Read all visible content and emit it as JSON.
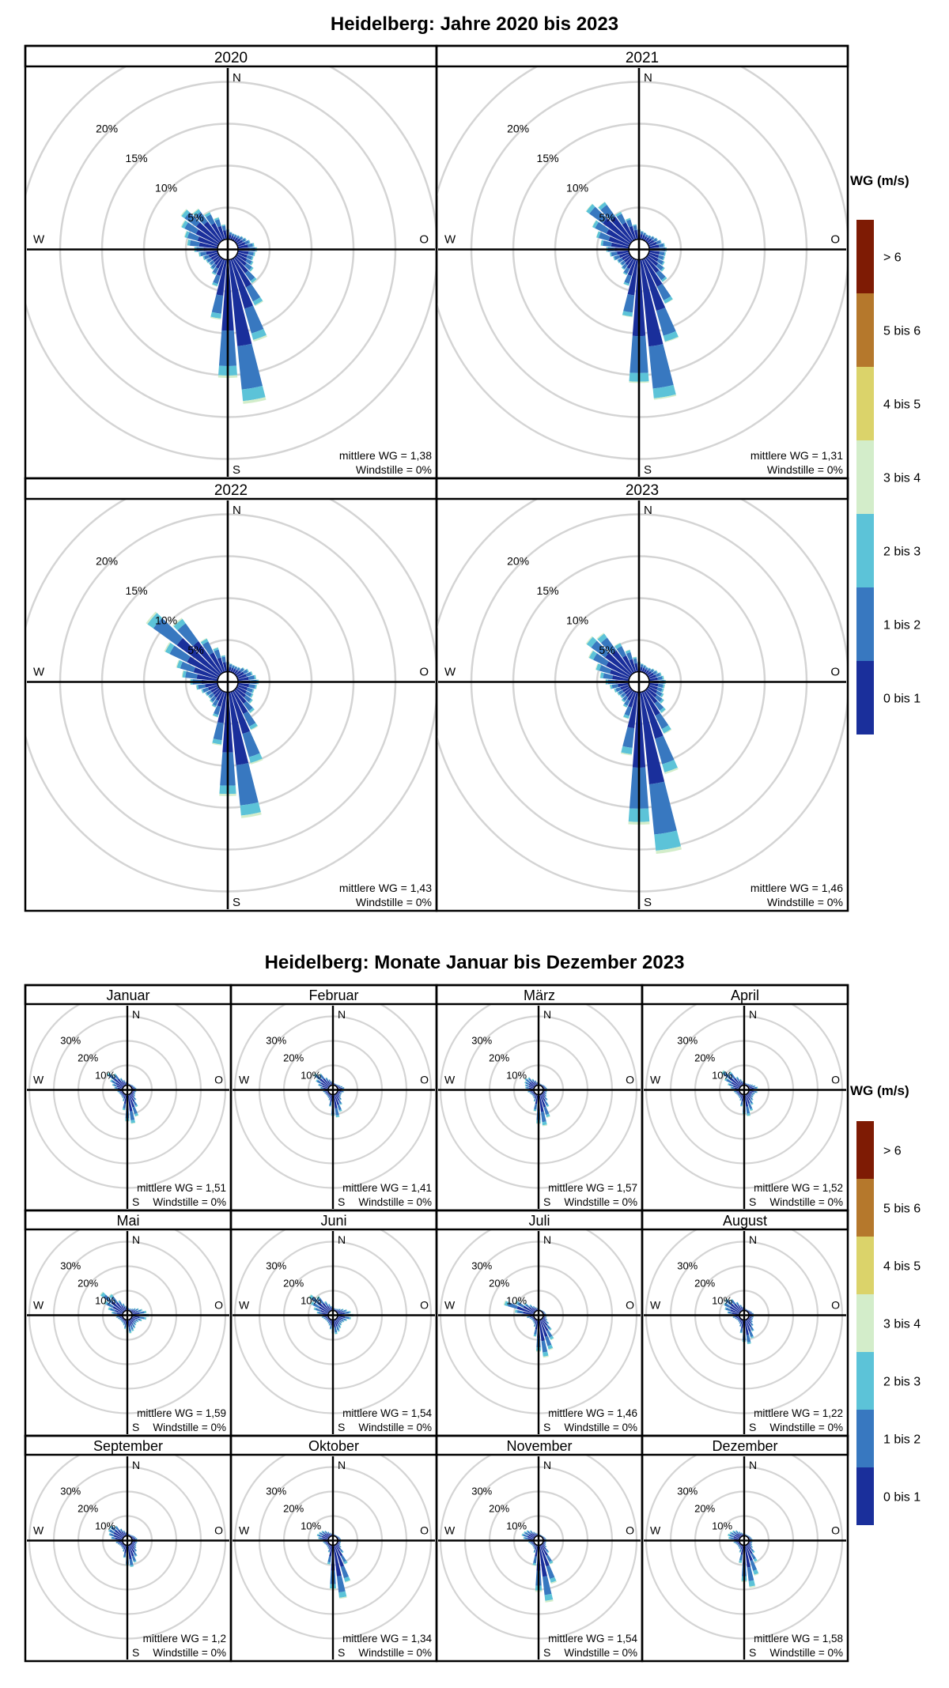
{
  "colors": {
    "bins": [
      "#1a2f9b",
      "#3878c0",
      "#5cc3d8",
      "#d3edca",
      "#dbd36a",
      "#b5782c",
      "#7e1b04"
    ],
    "ring": "#d4d4d4",
    "axis": "#000000"
  },
  "chart_data": [
    {
      "type": "windrose",
      "title": "Heidelberg: Jahre 2020 bis 2023",
      "facet_layout": "2x2",
      "radial_ticks": [
        5,
        10,
        15,
        20
      ],
      "radial_tick_labels": [
        "5%",
        "10%",
        "15%",
        "20%"
      ],
      "radial_max": 25,
      "direction_labels": {
        "n": "N",
        "e": "O",
        "s": "S",
        "w": "W"
      },
      "legend": {
        "title": "WG (m/s)",
        "entries": [
          "0 bis 1",
          "1 bis 2",
          "2 bis 3",
          "3 bis 4",
          "4 bis 5",
          "5 bis 6",
          "> 6"
        ]
      },
      "directions_deg": [
        0,
        10,
        20,
        30,
        40,
        50,
        60,
        70,
        80,
        90,
        100,
        110,
        120,
        130,
        140,
        150,
        160,
        170,
        180,
        190,
        200,
        210,
        220,
        230,
        240,
        250,
        260,
        270,
        280,
        290,
        300,
        310,
        320,
        330,
        340,
        350
      ],
      "panels": [
        {
          "label": "2020",
          "stat_mean": "mittlere WG = 1,38",
          "stat_calm": "Windstille = 0%",
          "totals": [
            1.2,
            0.9,
            0.8,
            0.8,
            0.9,
            1.1,
            1.3,
            1.6,
            2.0,
            2.3,
            2.1,
            2.0,
            2.2,
            2.6,
            3.8,
            6.3,
            10.2,
            17.3,
            14.1,
            7.2,
            3.4,
            2.2,
            1.8,
            1.6,
            1.7,
            1.9,
            2.3,
            2.8,
            3.7,
            4.2,
            5.0,
            5.7,
            4.8,
            3.8,
            2.8,
            1.8
          ],
          "shares": [
            0.6,
            0.3,
            0.08,
            0.02,
            0,
            0,
            0
          ]
        },
        {
          "label": "2021",
          "stat_mean": "mittlere WG = 1,31",
          "stat_calm": "Windstille = 0%",
          "totals": [
            1.2,
            1.0,
            0.9,
            0.8,
            0.9,
            1.1,
            1.3,
            1.6,
            1.9,
            2.1,
            2.0,
            2.0,
            2.2,
            2.6,
            3.6,
            6.0,
            10.3,
            16.8,
            14.7,
            6.9,
            3.3,
            2.2,
            1.8,
            1.6,
            1.7,
            2.0,
            2.3,
            2.7,
            3.4,
            4.1,
            5.0,
            6.6,
            5.8,
            3.8,
            2.7,
            1.8
          ],
          "shares": [
            0.62,
            0.3,
            0.07,
            0.01,
            0,
            0,
            0
          ]
        },
        {
          "label": "2022",
          "stat_mean": "mittlere WG = 1,43",
          "stat_calm": "Windstille = 0%",
          "totals": [
            1.2,
            1.0,
            0.9,
            0.9,
            1.0,
            1.3,
            1.6,
            1.9,
            2.2,
            2.5,
            2.3,
            2.1,
            2.2,
            2.5,
            3.4,
            5.2,
            9.0,
            15.1,
            12.4,
            6.4,
            3.2,
            2.2,
            1.9,
            1.7,
            1.8,
            2.1,
            2.6,
            3.3,
            4.3,
            5.2,
            7.2,
            10.8,
            8.2,
            4.6,
            3.1,
            2.0
          ],
          "shares": [
            0.58,
            0.32,
            0.08,
            0.02,
            0,
            0,
            0
          ]
        },
        {
          "label": "2023",
          "stat_mean": "mittlere WG = 1,46",
          "stat_calm": "Windstille = 0%",
          "totals": [
            1.2,
            1.0,
            0.9,
            0.8,
            0.9,
            1.1,
            1.3,
            1.6,
            1.8,
            2.0,
            1.9,
            1.9,
            2.1,
            2.5,
            3.4,
            5.7,
            10.2,
            19.4,
            15.8,
            7.6,
            3.4,
            2.2,
            1.8,
            1.6,
            1.7,
            1.9,
            2.3,
            2.8,
            3.5,
            4.2,
            5.5,
            6.6,
            6.0,
            4.0,
            2.8,
            1.8
          ],
          "shares": [
            0.57,
            0.31,
            0.1,
            0.02,
            0,
            0,
            0
          ]
        }
      ]
    },
    {
      "type": "windrose",
      "title": "Heidelberg: Monate Januar bis Dezember 2023",
      "facet_layout": "4x3",
      "radial_ticks": [
        10,
        20,
        30
      ],
      "radial_tick_labels": [
        "10%",
        "20%",
        "30%"
      ],
      "radial_max": 40,
      "direction_labels": {
        "n": "N",
        "e": "O",
        "s": "S",
        "w": "W"
      },
      "legend": {
        "title": "WG (m/s)",
        "entries": [
          "0 bis 1",
          "1 bis 2",
          "2 bis 3",
          "3 bis 4",
          "4 bis 5",
          "5 bis 6",
          "> 6"
        ]
      },
      "directions_deg": [
        0,
        10,
        20,
        30,
        40,
        50,
        60,
        70,
        80,
        90,
        100,
        110,
        120,
        130,
        140,
        150,
        160,
        170,
        180,
        190,
        200,
        210,
        220,
        230,
        240,
        250,
        260,
        270,
        280,
        290,
        300,
        310,
        320,
        330,
        340,
        350
      ],
      "panels": [
        {
          "label": "Januar",
          "stat_mean": "mittlere WG = 1,51",
          "stat_calm": "Windstille = 0%",
          "totals": [
            1.0,
            0.8,
            0.7,
            0.7,
            0.8,
            1.0,
            1.2,
            1.5,
            1.8,
            2.0,
            1.8,
            1.6,
            1.8,
            2.2,
            3.5,
            6.0,
            9.5,
            12.0,
            11.0,
            6.5,
            3.0,
            2.0,
            1.7,
            1.5,
            1.6,
            1.8,
            2.2,
            2.7,
            3.5,
            4.6,
            6.0,
            8.5,
            6.5,
            3.6,
            2.4,
            1.5
          ],
          "shares": [
            0.58,
            0.3,
            0.1,
            0.02,
            0,
            0,
            0
          ]
        },
        {
          "label": "Februar",
          "stat_mean": "mittlere WG = 1,41",
          "stat_calm": "Windstille = 0%",
          "totals": [
            1.2,
            0.9,
            0.8,
            0.8,
            0.9,
            1.2,
            1.6,
            2.2,
            2.8,
            3.2,
            2.6,
            2.0,
            2.0,
            2.3,
            3.3,
            5.0,
            7.5,
            9.5,
            8.8,
            5.0,
            2.6,
            1.9,
            1.6,
            1.5,
            1.6,
            1.8,
            2.2,
            2.7,
            3.4,
            4.5,
            6.0,
            8.0,
            6.5,
            3.8,
            2.6,
            1.7
          ],
          "shares": [
            0.6,
            0.3,
            0.08,
            0.02,
            0,
            0,
            0
          ]
        },
        {
          "label": "März",
          "stat_mean": "mittlere WG = 1,57",
          "stat_calm": "Windstille = 0%",
          "totals": [
            1.0,
            0.8,
            0.7,
            0.7,
            0.8,
            1.0,
            1.2,
            1.4,
            1.6,
            1.8,
            1.6,
            1.6,
            1.8,
            2.3,
            3.6,
            6.0,
            10.0,
            13.0,
            12.0,
            7.0,
            3.2,
            2.1,
            1.7,
            1.5,
            1.7,
            2.0,
            2.6,
            3.2,
            3.6,
            4.0,
            4.6,
            5.2,
            4.6,
            3.2,
            2.2,
            1.4
          ],
          "shares": [
            0.55,
            0.32,
            0.1,
            0.03,
            0,
            0,
            0
          ]
        },
        {
          "label": "April",
          "stat_mean": "mittlere WG = 1,52",
          "stat_calm": "Windstille = 0%",
          "totals": [
            1.2,
            1.0,
            0.9,
            1.0,
            1.2,
            1.6,
            2.2,
            3.0,
            3.8,
            4.2,
            3.6,
            2.8,
            2.6,
            2.8,
            3.6,
            5.0,
            7.2,
            9.0,
            8.2,
            5.0,
            2.8,
            2.0,
            1.7,
            1.6,
            1.7,
            2.0,
            2.4,
            3.0,
            3.8,
            5.2,
            7.2,
            9.8,
            7.5,
            4.2,
            2.8,
            1.8
          ],
          "shares": [
            0.55,
            0.32,
            0.1,
            0.03,
            0,
            0,
            0
          ]
        },
        {
          "label": "Mai",
          "stat_mean": "mittlere WG = 1,59",
          "stat_calm": "Windstille = 0%",
          "totals": [
            1.3,
            1.1,
            1.0,
            1.2,
            1.6,
            2.4,
            3.4,
            4.6,
            6.0,
            7.0,
            6.0,
            4.4,
            3.4,
            3.0,
            3.4,
            4.2,
            5.0,
            5.6,
            5.2,
            3.8,
            2.5,
            1.9,
            1.7,
            1.6,
            1.8,
            2.2,
            2.8,
            3.6,
            4.6,
            6.4,
            9.0,
            12.0,
            9.0,
            5.0,
            3.2,
            2.0
          ],
          "shares": [
            0.52,
            0.33,
            0.12,
            0.03,
            0,
            0,
            0
          ]
        },
        {
          "label": "Juni",
          "stat_mean": "mittlere WG = 1,54",
          "stat_calm": "Windstille = 0%",
          "totals": [
            1.3,
            1.1,
            1.0,
            1.1,
            1.5,
            2.1,
            3.0,
            4.2,
            5.5,
            6.5,
            5.6,
            4.2,
            3.4,
            3.0,
            3.4,
            4.2,
            5.2,
            6.0,
            5.6,
            4.0,
            2.6,
            2.0,
            1.7,
            1.6,
            1.8,
            2.2,
            2.8,
            3.6,
            4.8,
            6.4,
            8.4,
            10.5,
            8.0,
            4.6,
            3.0,
            1.9
          ],
          "shares": [
            0.53,
            0.33,
            0.11,
            0.03,
            0,
            0,
            0
          ]
        },
        {
          "label": "Juli",
          "stat_mean": "mittlere WG = 1,46",
          "stat_calm": "Windstille = 0%",
          "totals": [
            0.8,
            0.6,
            0.5,
            0.5,
            0.6,
            0.7,
            0.9,
            1.0,
            1.2,
            1.4,
            1.4,
            1.6,
            2.2,
            3.5,
            6.0,
            9.5,
            13.0,
            15.5,
            13.0,
            7.0,
            3.2,
            2.0,
            1.6,
            1.4,
            1.6,
            2.0,
            3.0,
            5.0,
            8.0,
            13.0,
            9.0,
            5.5,
            3.6,
            2.4,
            1.6,
            1.1
          ],
          "shares": [
            0.56,
            0.3,
            0.11,
            0.03,
            0,
            0,
            0
          ]
        },
        {
          "label": "August",
          "stat_mean": "mittlere WG = 1,22",
          "stat_calm": "Windstille = 0%",
          "totals": [
            1.0,
            0.8,
            0.7,
            0.7,
            0.8,
            1.0,
            1.3,
            1.6,
            2.0,
            2.2,
            2.0,
            1.9,
            2.0,
            2.5,
            3.6,
            5.5,
            8.0,
            10.0,
            9.0,
            5.5,
            3.0,
            2.0,
            1.6,
            1.5,
            1.7,
            2.1,
            2.8,
            3.8,
            5.0,
            6.4,
            7.5,
            8.0,
            6.4,
            4.2,
            2.6,
            1.6
          ],
          "shares": [
            0.62,
            0.3,
            0.07,
            0.01,
            0,
            0,
            0
          ]
        },
        {
          "label": "September",
          "stat_mean": "mittlere WG = 1,2",
          "stat_calm": "Windstille = 0%",
          "totals": [
            1.1,
            0.9,
            0.8,
            0.8,
            0.9,
            1.2,
            1.5,
            1.8,
            2.2,
            2.4,
            2.2,
            2.0,
            2.2,
            2.7,
            3.8,
            5.5,
            7.5,
            9.0,
            8.2,
            5.2,
            2.9,
            2.0,
            1.7,
            1.6,
            1.8,
            2.2,
            2.8,
            3.6,
            4.8,
            6.0,
            6.8,
            7.0,
            5.6,
            3.6,
            2.4,
            1.6
          ],
          "shares": [
            0.64,
            0.28,
            0.07,
            0.01,
            0,
            0,
            0
          ]
        },
        {
          "label": "Oktober",
          "stat_mean": "mittlere WG = 1,34",
          "stat_calm": "Windstille = 0%",
          "totals": [
            0.9,
            0.7,
            0.6,
            0.6,
            0.7,
            0.8,
            1.0,
            1.2,
            1.4,
            1.5,
            1.4,
            1.4,
            1.6,
            2.4,
            4.5,
            9.0,
            16.0,
            22.0,
            18.0,
            8.0,
            3.2,
            2.0,
            1.6,
            1.4,
            1.5,
            1.8,
            2.2,
            3.0,
            4.2,
            5.0,
            4.6,
            4.0,
            3.2,
            2.2,
            1.5,
            1.0
          ],
          "shares": [
            0.58,
            0.3,
            0.1,
            0.02,
            0,
            0,
            0
          ]
        },
        {
          "label": "November",
          "stat_mean": "mittlere WG = 1,54",
          "stat_calm": "Windstille = 0%",
          "totals": [
            0.9,
            0.7,
            0.6,
            0.6,
            0.6,
            0.7,
            0.9,
            1.1,
            1.3,
            1.4,
            1.3,
            1.3,
            1.5,
            2.3,
            4.5,
            9.0,
            16.5,
            23.5,
            19.0,
            8.5,
            3.4,
            2.0,
            1.6,
            1.4,
            1.5,
            1.8,
            2.3,
            3.2,
            4.4,
            5.4,
            5.0,
            4.4,
            3.4,
            2.2,
            1.5,
            1.0
          ],
          "shares": [
            0.55,
            0.32,
            0.1,
            0.03,
            0,
            0,
            0
          ]
        },
        {
          "label": "Dezember",
          "stat_mean": "mittlere WG = 1,58",
          "stat_calm": "Windstille = 0%",
          "totals": [
            1.0,
            0.8,
            0.7,
            0.7,
            0.8,
            0.9,
            1.1,
            1.3,
            1.5,
            1.6,
            1.5,
            1.5,
            1.8,
            2.6,
            4.5,
            8.0,
            13.0,
            17.5,
            15.0,
            7.5,
            3.3,
            2.1,
            1.7,
            1.5,
            1.6,
            1.9,
            2.5,
            3.3,
            4.6,
            5.2,
            4.8,
            4.2,
            3.4,
            2.3,
            1.6,
            1.1
          ],
          "shares": [
            0.52,
            0.32,
            0.13,
            0.03,
            0,
            0,
            0
          ]
        }
      ]
    }
  ]
}
